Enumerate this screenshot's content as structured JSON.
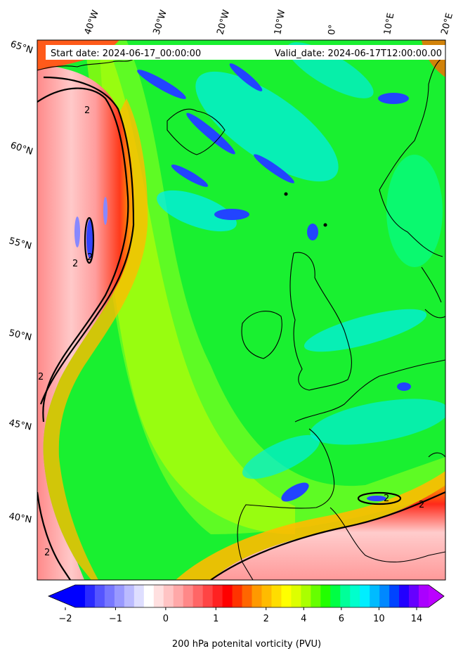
{
  "map": {
    "start_label": "Start date: 2024-06-17_00:00:00",
    "valid_label": "Valid_date: 2024-06-17T12:00:00.00",
    "lon_ticks": [
      "40°W",
      "30°W",
      "20°W",
      "10°W",
      "0°",
      "10°E",
      "20°E"
    ],
    "lat_ticks": [
      "65°N",
      "60°N",
      "55°N",
      "50°N",
      "45°N",
      "40°N"
    ],
    "contour_labels": [
      "2",
      "2",
      "2",
      "2",
      "2",
      "2",
      "2"
    ],
    "extent": {
      "lon": [
        -45,
        20
      ],
      "lat": [
        37,
        65
      ]
    }
  },
  "colorbar": {
    "title": "200 hPa potenital vorticity (PVU)",
    "tick_labels": [
      "−2",
      "−1",
      "0",
      "1",
      "2",
      "4",
      "6",
      "10",
      "14"
    ],
    "colors": [
      "#0000ff",
      "#2a2aff",
      "#5555ff",
      "#7777ff",
      "#9999ff",
      "#bbbbff",
      "#dedeff",
      "#ffffff",
      "#ffe0e0",
      "#ffc4c4",
      "#ffa8a8",
      "#ff8888",
      "#ff6666",
      "#ff4444",
      "#ff2222",
      "#ff0000",
      "#ff3300",
      "#ff6600",
      "#ff9900",
      "#ffbb00",
      "#ffdd00",
      "#ffff00",
      "#ddff00",
      "#aaff00",
      "#66ff00",
      "#22ff00",
      "#00ff44",
      "#00ff99",
      "#00ffcc",
      "#00eeff",
      "#00bbff",
      "#0088ff",
      "#0044ff",
      "#2200ff",
      "#6600ff",
      "#aa00ff"
    ],
    "under_color": "#0000ff",
    "over_color": "#bb00ff"
  }
}
